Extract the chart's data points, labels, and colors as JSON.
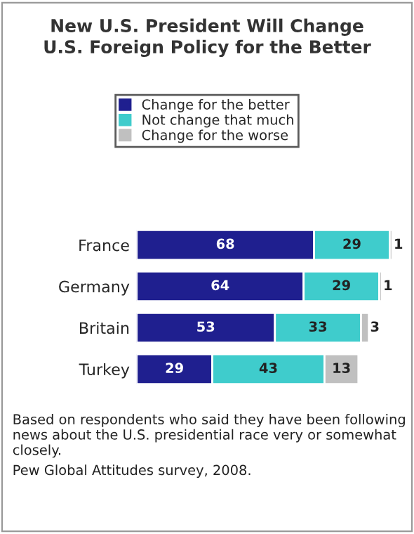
{
  "chart_data": {
    "type": "bar",
    "orientation": "horizontal",
    "stacked": true,
    "title": "New U.S. President Will Change\nU.S. Foreign Policy for the Better",
    "categories": [
      "France",
      "Germany",
      "Britain",
      "Turkey"
    ],
    "series": [
      {
        "name": "Change for the better",
        "color": "#1f1f8f",
        "values": [
          68,
          64,
          53,
          29
        ]
      },
      {
        "name": "Not change that much",
        "color": "#3fcccc",
        "values": [
          29,
          29,
          33,
          43
        ]
      },
      {
        "name": "Change for the worse",
        "color": "#c0c0c0",
        "values": [
          1,
          1,
          3,
          13
        ]
      }
    ],
    "data_labels": true,
    "legend": "top",
    "grid": false,
    "annotations": [
      "Based on respondents who said they have been following news about the U.S. presidential race very or somewhat closely.",
      "Pew Global Attitudes survey, 2008."
    ]
  }
}
